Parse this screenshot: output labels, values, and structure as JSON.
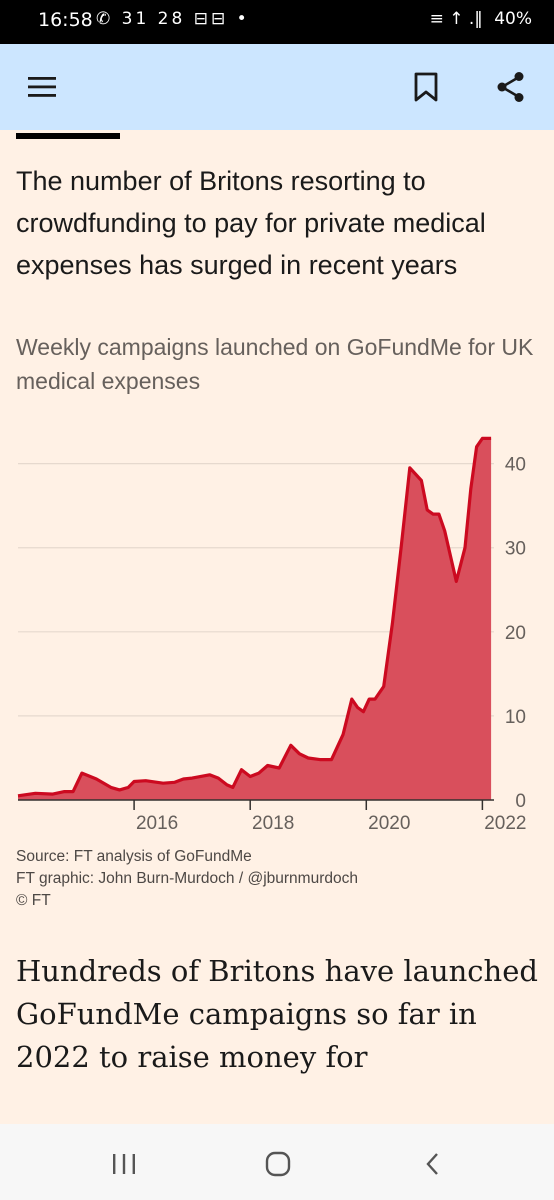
{
  "status_bar": {
    "time": "16:58",
    "icons_left": "✆ 31 28 ⊟⊟ •",
    "signal": "≡ ↑ .‖",
    "battery": "40%"
  },
  "article": {
    "title": "The number of Britons resorting to crowdfunding to pay for private medical expenses has surged in recent years",
    "subtitle": "Weekly campaigns launched on GoFundMe for UK medical expenses",
    "source": "Source: FT analysis of GoFundMe",
    "graphic_credit": "FT graphic: John Burn-Murdoch / @jburnmurdoch",
    "copyright": "© FT",
    "body_text": "Hundreds of Britons have launched GoFundMe campaigns so far in 2022 to raise money for"
  },
  "chart_data": {
    "type": "area",
    "title": "The number of Britons resorting to crowdfunding to pay for private medical expenses has surged in recent years",
    "subtitle": "Weekly campaigns launched on GoFundMe for UK medical expenses",
    "xlabel": "",
    "ylabel": "",
    "x_ticks": [
      "2016",
      "2018",
      "2020",
      "2022"
    ],
    "y_ticks": [
      0,
      10,
      20,
      30,
      40
    ],
    "ylim": [
      0,
      44
    ],
    "xlim": [
      2014.0,
      2022.2
    ],
    "y_axis_side": "right",
    "grid": "horizontal",
    "fill_color": "#d94f5c",
    "line_color": "#cc0a20",
    "series": [
      {
        "x": [
          2014.0,
          2014.3,
          2014.6,
          2014.8,
          2014.95,
          2015.1,
          2015.35,
          2015.6,
          2015.75,
          2015.9,
          2016.0,
          2016.2,
          2016.5,
          2016.7,
          2016.85,
          2017.0,
          2017.3,
          2017.45,
          2017.6,
          2017.7,
          2017.85,
          2018.0,
          2018.15,
          2018.3,
          2018.5,
          2018.7,
          2018.85,
          2019.0,
          2019.2,
          2019.4,
          2019.6,
          2019.75,
          2019.85,
          2019.95,
          2020.05,
          2020.15,
          2020.3,
          2020.45,
          2020.6,
          2020.75,
          2020.95,
          2021.05,
          2021.15,
          2021.25,
          2021.35,
          2021.45,
          2021.55,
          2021.7,
          2021.8,
          2021.9,
          2022.0,
          2022.05,
          2022.1,
          2022.15
        ],
        "values": [
          0.5,
          0.8,
          0.7,
          1.0,
          1.0,
          3.2,
          2.5,
          1.5,
          1.2,
          1.5,
          2.2,
          2.3,
          2.0,
          2.1,
          2.5,
          2.6,
          3.0,
          2.6,
          1.8,
          1.5,
          3.6,
          2.8,
          3.2,
          4.1,
          3.8,
          6.5,
          5.5,
          5.0,
          4.8,
          4.8,
          7.8,
          12.0,
          11.0,
          10.5,
          12.0,
          12.0,
          13.5,
          21.0,
          30.0,
          39.5,
          38.0,
          34.5,
          34.0,
          34.0,
          32.0,
          29.0,
          26.0,
          30.0,
          37.0,
          42.0,
          43.0,
          43.0,
          43.0,
          43.0
        ]
      }
    ]
  }
}
